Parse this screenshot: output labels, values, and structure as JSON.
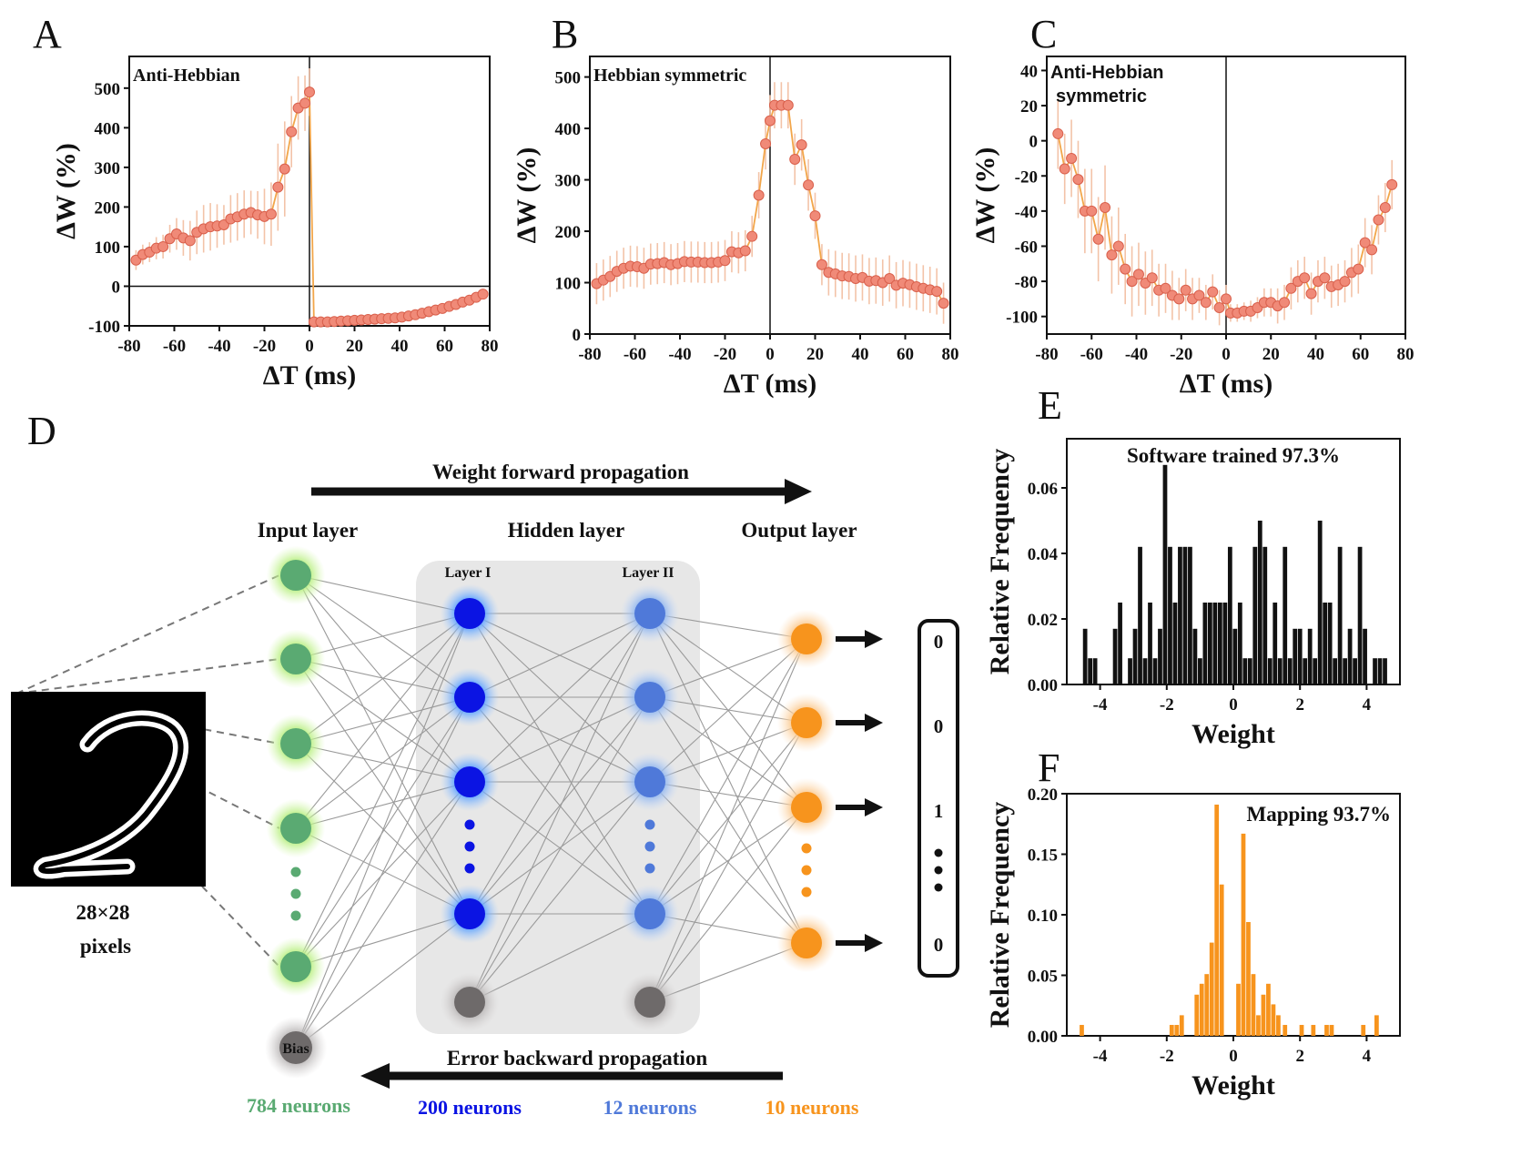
{
  "colors": {
    "marker": "#f08a78",
    "marker_edge": "#d9604c",
    "line_main": "#f2a64a",
    "err": "#f3c3a8",
    "orange": "#f7941d",
    "green": "#5aaa72",
    "green_glow": "#a6e37a",
    "blue1": "#0b14e3",
    "blue2": "#4f79d9",
    "gray_node": "#6e6a6a",
    "panel_gray": "#e7e7e7",
    "hist_black": "#111111"
  },
  "panels": {
    "a": "A",
    "b": "B",
    "c": "C",
    "d": "D",
    "e": "E",
    "f": "F"
  },
  "chart_data": [
    {
      "id": "A",
      "type": "scatter",
      "annotation": "Anti-Hebbian",
      "xlabel": "ΔT (ms)",
      "ylabel": "ΔW (%)",
      "xlim": [
        -80,
        80
      ],
      "ylim": [
        -100,
        580
      ],
      "xticks": [
        -80,
        -60,
        -40,
        -20,
        0,
        20,
        40,
        60,
        80
      ],
      "yticks": [
        -100,
        0,
        100,
        200,
        300,
        400,
        500
      ],
      "x": [
        -77,
        -74,
        -71,
        -68,
        -65,
        -62,
        -59,
        -56,
        -53,
        -50,
        -47,
        -44,
        -41,
        -38,
        -35,
        -32,
        -29,
        -26,
        -23,
        -20,
        -17,
        -14,
        -11,
        -8,
        -5,
        -2,
        0,
        2,
        5,
        8,
        11,
        14,
        17,
        20,
        23,
        26,
        29,
        32,
        35,
        38,
        41,
        44,
        47,
        50,
        53,
        56,
        59,
        62,
        65,
        68,
        71,
        74,
        77
      ],
      "y": [
        66,
        80,
        86,
        96,
        100,
        120,
        132,
        122,
        115,
        136,
        145,
        150,
        152,
        155,
        170,
        175,
        182,
        186,
        180,
        176,
        182,
        250,
        296,
        390,
        450,
        462,
        490,
        -90,
        -90,
        -90,
        -89,
        -88,
        -87,
        -86,
        -85,
        -84,
        -83,
        -82,
        -81,
        -80,
        -78,
        -75,
        -72,
        -68,
        -64,
        -60,
        -56,
        -51,
        -46,
        -40,
        -35,
        -28,
        -20
      ],
      "err": [
        25,
        25,
        25,
        28,
        30,
        35,
        40,
        45,
        50,
        55,
        60,
        60,
        55,
        50,
        60,
        60,
        60,
        55,
        60,
        70,
        80,
        110,
        120,
        90,
        80,
        70,
        60,
        5,
        5,
        5,
        5,
        5,
        5,
        5,
        5,
        5,
        5,
        5,
        5,
        5,
        5,
        5,
        5,
        5,
        5,
        5,
        5,
        5,
        5,
        5,
        5,
        5,
        5
      ],
      "hline": 0,
      "vline": 0
    },
    {
      "id": "B",
      "type": "scatter",
      "annotation": "Hebbian symmetric",
      "xlabel": "ΔT (ms)",
      "ylabel": "ΔW (%)",
      "xlim": [
        -80,
        80
      ],
      "ylim": [
        0,
        540
      ],
      "xticks": [
        -80,
        -60,
        -40,
        -20,
        0,
        20,
        40,
        60,
        80
      ],
      "yticks": [
        0,
        100,
        200,
        300,
        400,
        500
      ],
      "x": [
        -77,
        -74,
        -71,
        -68,
        -65,
        -62,
        -59,
        -56,
        -53,
        -50,
        -47,
        -44,
        -41,
        -38,
        -35,
        -32,
        -29,
        -26,
        -23,
        -20,
        -17,
        -14,
        -11,
        -8,
        -5,
        -2,
        0,
        2,
        5,
        8,
        11,
        14,
        17,
        20,
        23,
        26,
        29,
        32,
        35,
        38,
        41,
        44,
        47,
        50,
        53,
        56,
        59,
        62,
        65,
        68,
        71,
        74,
        77
      ],
      "y": [
        98,
        105,
        112,
        122,
        128,
        132,
        131,
        128,
        136,
        137,
        139,
        135,
        137,
        141,
        140,
        140,
        139,
        139,
        140,
        143,
        160,
        158,
        162,
        190,
        270,
        370,
        415,
        445,
        445,
        445,
        340,
        368,
        290,
        230,
        135,
        120,
        117,
        113,
        112,
        108,
        110,
        103,
        104,
        100,
        108,
        95,
        99,
        96,
        92,
        89,
        86,
        83,
        60
      ],
      "err": [
        40,
        40,
        40,
        40,
        40,
        40,
        40,
        40,
        40,
        40,
        40,
        40,
        40,
        40,
        40,
        40,
        40,
        40,
        40,
        40,
        40,
        40,
        40,
        40,
        45,
        50,
        50,
        45,
        45,
        45,
        50,
        50,
        50,
        45,
        40,
        45,
        45,
        45,
        45,
        45,
        45,
        45,
        45,
        45,
        45,
        45,
        45,
        45,
        45,
        45,
        45,
        45,
        40
      ],
      "vline": 0
    },
    {
      "id": "C",
      "type": "scatter",
      "annotation": [
        "Anti-Hebbian",
        "symmetric"
      ],
      "xlabel": "ΔT (ms)",
      "ylabel": "ΔW (%)",
      "xlim": [
        -80,
        80
      ],
      "ylim": [
        -110,
        48
      ],
      "xticks": [
        -80,
        -60,
        -40,
        -20,
        0,
        20,
        40,
        60,
        80
      ],
      "yticks": [
        -100,
        -80,
        -60,
        -40,
        -20,
        0,
        20,
        40
      ],
      "x": [
        -75,
        -72,
        -69,
        -66,
        -63,
        -60,
        -57,
        -54,
        -51,
        -48,
        -45,
        -42,
        -39,
        -36,
        -33,
        -30,
        -27,
        -24,
        -21,
        -18,
        -15,
        -12,
        -9,
        -6,
        -3,
        0,
        2,
        5,
        8,
        11,
        14,
        17,
        20,
        23,
        26,
        29,
        32,
        35,
        38,
        41,
        44,
        47,
        50,
        53,
        56,
        59,
        62,
        65,
        68,
        71,
        74
      ],
      "y": [
        4,
        -16,
        -10,
        -22,
        -40,
        -40,
        -56,
        -38,
        -65,
        -60,
        -73,
        -80,
        -76,
        -81,
        -78,
        -85,
        -84,
        -88,
        -90,
        -85,
        -90,
        -88,
        -92,
        -86,
        -95,
        -90,
        -98,
        -98,
        -97,
        -97,
        -95,
        -92,
        -92,
        -94,
        -92,
        -84,
        -80,
        -78,
        -87,
        -80,
        -78,
        -83,
        -82,
        -80,
        -75,
        -73,
        -58,
        -62,
        -45,
        -38,
        -25
      ],
      "err": [
        20,
        20,
        22,
        22,
        24,
        24,
        24,
        24,
        22,
        22,
        20,
        20,
        18,
        18,
        16,
        15,
        14,
        14,
        12,
        12,
        12,
        10,
        10,
        10,
        10,
        8,
        5,
        5,
        5,
        6,
        6,
        8,
        8,
        10,
        10,
        12,
        12,
        12,
        12,
        12,
        12,
        12,
        12,
        12,
        14,
        14,
        14,
        14,
        14,
        14,
        14
      ],
      "vline": 0
    },
    {
      "id": "E",
      "type": "bar",
      "annotation": "Software trained    97.3%",
      "xlabel": "Weight",
      "ylabel": "Relative Frequency",
      "xlim": [
        -5,
        5
      ],
      "ylim": [
        0,
        0.075
      ],
      "xticks": [
        -4,
        -2,
        0,
        2,
        4
      ],
      "yticks": [
        0.0,
        0.02,
        0.04,
        0.06
      ],
      "x": [
        -4.45,
        -4.3,
        -4.15,
        -3.55,
        -3.4,
        -3.1,
        -2.95,
        -2.8,
        -2.65,
        -2.5,
        -2.35,
        -2.2,
        -2.05,
        -1.9,
        -1.75,
        -1.6,
        -1.45,
        -1.3,
        -1.15,
        -1.0,
        -0.85,
        -0.7,
        -0.55,
        -0.4,
        -0.25,
        -0.1,
        0.05,
        0.2,
        0.35,
        0.5,
        0.65,
        0.8,
        0.95,
        1.1,
        1.25,
        1.4,
        1.55,
        1.7,
        1.85,
        2.0,
        2.15,
        2.3,
        2.45,
        2.6,
        2.75,
        2.9,
        3.05,
        3.2,
        3.35,
        3.5,
        3.65,
        3.8,
        3.95,
        4.25,
        4.4,
        4.55
      ],
      "values": [
        0.017,
        0.008,
        0.008,
        0.017,
        0.025,
        0.008,
        0.017,
        0.042,
        0.008,
        0.025,
        0.008,
        0.017,
        0.067,
        0.042,
        0.025,
        0.042,
        0.042,
        0.042,
        0.017,
        0.008,
        0.025,
        0.025,
        0.025,
        0.025,
        0.025,
        0.042,
        0.017,
        0.025,
        0.008,
        0.008,
        0.042,
        0.05,
        0.042,
        0.008,
        0.025,
        0.008,
        0.042,
        0.008,
        0.017,
        0.017,
        0.008,
        0.017,
        0.008,
        0.05,
        0.025,
        0.025,
        0.008,
        0.042,
        0.008,
        0.017,
        0.008,
        0.042,
        0.017,
        0.008,
        0.008,
        0.008
      ],
      "color": "#111111"
    },
    {
      "id": "F",
      "type": "bar",
      "annotation": "Mapping    93.7%",
      "xlabel": "Weight",
      "ylabel": "Relative Frequency",
      "xlim": [
        -5,
        5
      ],
      "ylim": [
        0,
        0.2
      ],
      "xticks": [
        -4,
        -2,
        0,
        2,
        4
      ],
      "yticks": [
        0.0,
        0.05,
        0.1,
        0.15,
        0.2
      ],
      "x": [
        -4.55,
        -1.85,
        -1.7,
        -1.55,
        -1.1,
        -0.95,
        -0.8,
        -0.65,
        -0.5,
        -0.35,
        0.15,
        0.3,
        0.45,
        0.6,
        0.75,
        0.9,
        1.05,
        1.2,
        1.35,
        1.55,
        2.05,
        2.4,
        2.8,
        2.95,
        3.9,
        4.3
      ],
      "values": [
        0.009,
        0.009,
        0.009,
        0.017,
        0.034,
        0.043,
        0.051,
        0.077,
        0.191,
        0.125,
        0.043,
        0.167,
        0.094,
        0.051,
        0.017,
        0.034,
        0.043,
        0.026,
        0.017,
        0.009,
        0.009,
        0.009,
        0.009,
        0.009,
        0.009,
        0.017
      ],
      "color": "#f7941d"
    }
  ],
  "network": {
    "forward_label": "Weight forward propagation",
    "backward_label": "Error backward propagation",
    "input_title": "Input layer",
    "hidden_title": "Hidden layer",
    "output_title": "Output layer",
    "layer1_label": "Layer I",
    "layer2_label": "Layer II",
    "bias_label": "Bias",
    "pixels_line1": "28×28",
    "pixels_line2": "pixels",
    "counts": {
      "input": "784 neurons",
      "hidden1": "200 neurons",
      "hidden2": "12 neurons",
      "output": "10 neurons"
    },
    "outputs": [
      "0",
      "0",
      "1",
      "0"
    ],
    "digit": "2"
  }
}
